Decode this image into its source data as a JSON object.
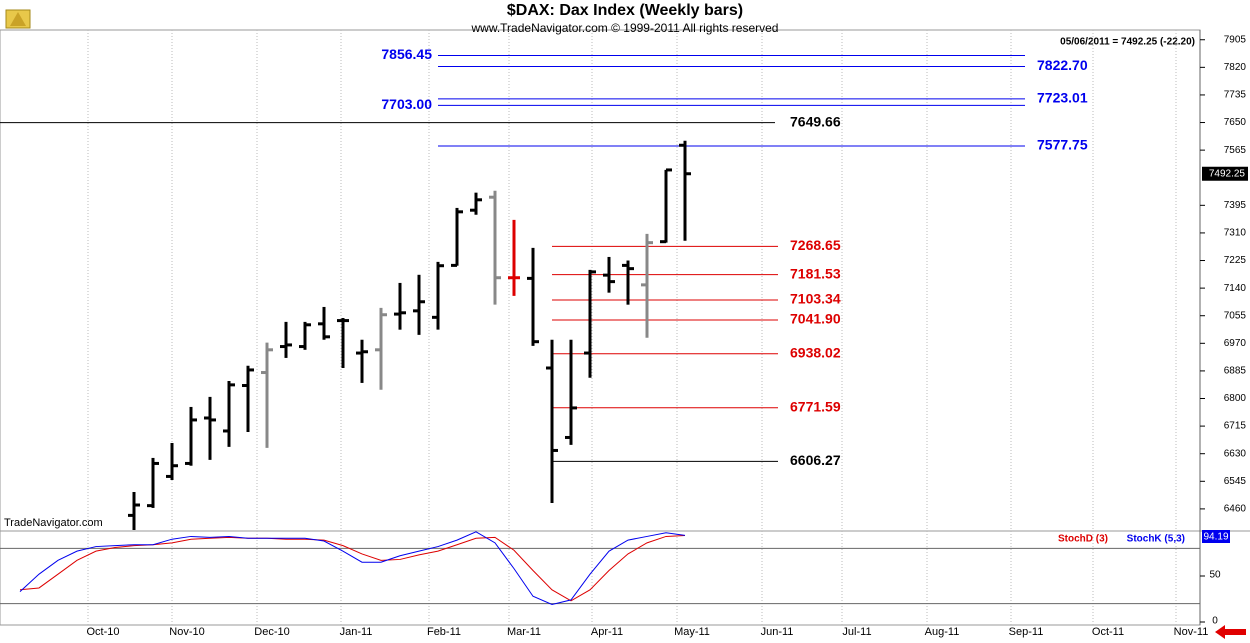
{
  "chart_data": {
    "type": "ohlc",
    "title": "$DAX:  Dax Index  (Weekly bars)",
    "subtitle": "www.TradeNavigator.com © 1999-2011 All rights reserved",
    "last_quote": "05/06/2011 = 7492.25 (-22.20)",
    "watermark": "TradeNavigator.com",
    "last_price": 7492.25,
    "categories": [
      "Oct-10",
      "Nov-10",
      "Dec-10",
      "Jan-11",
      "Feb-11",
      "Mar-11",
      "Apr-11",
      "May-11",
      "Jun-11",
      "Jul-11",
      "Aug-11",
      "Sep-11",
      "Oct-11",
      "Nov-11"
    ],
    "ylim": [
      6395,
      7935
    ],
    "yticks": [
      6460,
      6545,
      6630,
      6715,
      6800,
      6885,
      6970,
      7055,
      7140,
      7225,
      7310,
      7395,
      7565,
      7650,
      7735,
      7820,
      7905
    ],
    "grid": true,
    "bars": {
      "open": [
        null,
        null,
        null,
        null,
        null,
        null,
        6440,
        6470,
        6560,
        6600,
        6740,
        6700,
        6840,
        6880,
        6960,
        6960,
        7030,
        7040,
        6940,
        6950,
        7060,
        7070,
        7050,
        7210,
        7380,
        7420,
        7172,
        7170,
        6894,
        6680,
        6940,
        7180,
        7210,
        7150,
        7283,
        7580
      ],
      "high": [
        null,
        null,
        null,
        null,
        null,
        null,
        6512,
        6617,
        6663,
        6774,
        6805,
        6854,
        6901,
        6972,
        7036,
        7036,
        7082,
        7048,
        6981,
        7079,
        7156,
        7181,
        7221,
        7387,
        7434,
        7440,
        7350,
        7264,
        6981,
        6981,
        7196,
        7236,
        7225,
        7307,
        7504,
        7594
      ],
      "low": [
        null,
        null,
        null,
        null,
        null,
        null,
        6380,
        6463,
        6549,
        6593,
        6611,
        6651,
        6697,
        6648,
        6925,
        6950,
        6981,
        6894,
        6848,
        6827,
        7012,
        6996,
        7012,
        7209,
        7366,
        7089,
        7116,
        6962,
        6478,
        6657,
        6864,
        7126,
        7089,
        6987,
        7280,
        7286
      ],
      "close": [
        null,
        null,
        null,
        null,
        null,
        null,
        6472,
        6600,
        6593,
        6734,
        6734,
        6842,
        6888,
        6950,
        6965,
        7027,
        6990,
        7040,
        6944,
        7058,
        7064,
        7098,
        7209,
        7375,
        7412,
        7172,
        7172,
        6975,
        6640,
        6771,
        7190,
        7160,
        7200,
        7280,
        7504,
        7492.25
      ],
      "colors": [
        null,
        null,
        null,
        null,
        null,
        null,
        "#000000",
        "#000000",
        "#000000",
        "#000000",
        "#000000",
        "#000000",
        "#000000",
        "#888888",
        "#000000",
        "#000000",
        "#000000",
        "#000000",
        "#000000",
        "#888888",
        "#000000",
        "#000000",
        "#000000",
        "#000000",
        "#000000",
        "#888888",
        "#dd0000",
        "#000000",
        "#000000",
        "#000000",
        "#000000",
        "#000000",
        "#000000",
        "#888888",
        "#000000",
        "#000000"
      ]
    },
    "levels": [
      {
        "value": 7856.45,
        "color": "#0000ee"
      },
      {
        "value": 7822.7,
        "label": "7822.70",
        "color": "#0000ee"
      },
      {
        "value": 7723.01,
        "color": "#0000ee"
      },
      {
        "value": 7703,
        "label": "7703.00",
        "color": "#0000ee"
      },
      {
        "value": 7649.66,
        "color": "#000000"
      },
      {
        "value": 7577.75,
        "color": "#0000ee"
      },
      {
        "value": 7268.65,
        "color": "#dd0000"
      },
      {
        "value": 7181.53,
        "color": "#dd0000"
      },
      {
        "value": 7103.34,
        "color": "#dd0000"
      },
      {
        "value": 7041.9,
        "label": "7041.90",
        "color": "#dd0000"
      },
      {
        "value": 6938.02,
        "color": "#dd0000"
      },
      {
        "value": 6771.59,
        "color": "#dd0000"
      },
      {
        "value": 6606.27,
        "color": "#000000"
      }
    ],
    "indicator": {
      "ylim": [
        0,
        100
      ],
      "yticks": [
        0,
        50
      ],
      "reference_lines": [
        20,
        80
      ],
      "series": [
        {
          "name": "StochD (3)",
          "color": "#dd0000",
          "values": [
            35,
            37,
            52,
            67,
            77,
            81,
            83,
            84,
            86,
            90,
            91,
            92,
            91,
            91,
            90,
            90,
            89,
            83,
            74,
            67,
            68,
            73,
            77,
            84,
            91,
            92,
            78,
            56,
            35,
            23,
            35,
            56,
            74,
            86,
            93,
            94
          ]
        },
        {
          "name": "StochK (5,3)",
          "color": "#0000ee",
          "values": [
            33,
            52,
            67,
            77,
            82,
            83,
            84,
            84,
            90,
            93,
            92,
            93,
            91,
            91,
            91,
            91,
            88,
            77,
            65,
            65,
            72,
            77,
            82,
            89,
            98,
            86,
            58,
            28,
            19,
            24,
            52,
            77,
            89,
            93,
            97,
            94.19
          ]
        }
      ]
    }
  }
}
